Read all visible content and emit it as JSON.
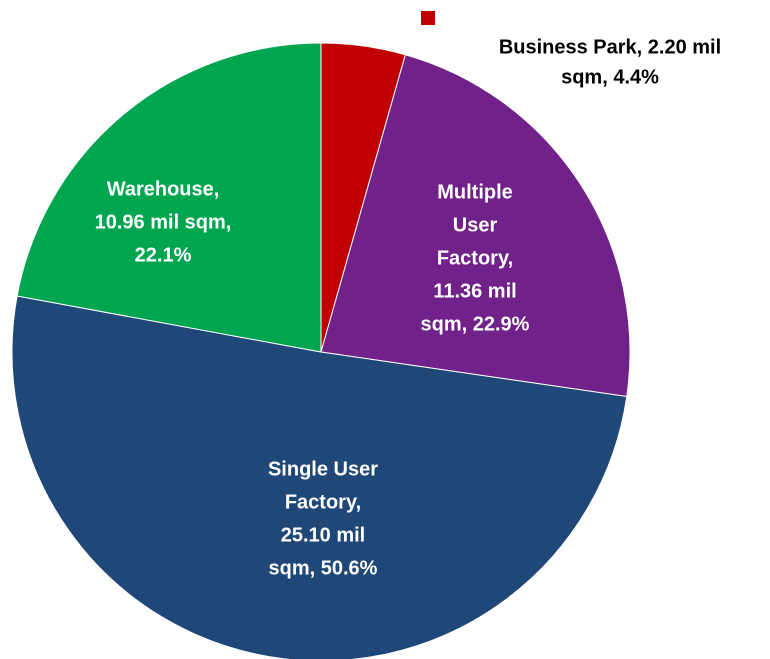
{
  "chart_data": {
    "type": "pie",
    "categories": [
      "Business Park",
      "Multiple User Factory",
      "Single User Factory",
      "Warehouse"
    ],
    "values": [
      4.4,
      22.9,
      50.6,
      22.1
    ],
    "value_labels": [
      [
        "Business Park, 2.20 mil",
        "sqm, 4.4%"
      ],
      [
        "Multiple",
        "User",
        "Factory,",
        "11.36 mil",
        "sqm, 22.9%"
      ],
      [
        "Single User",
        "Factory,",
        "25.10 mil",
        "sqm, 50.6%"
      ],
      [
        "Warehouse,",
        "10.96 mil sqm,",
        "22.1%"
      ]
    ],
    "colors": [
      "#c00000",
      "#71218a",
      "#1f4878",
      "#00a54f"
    ]
  }
}
